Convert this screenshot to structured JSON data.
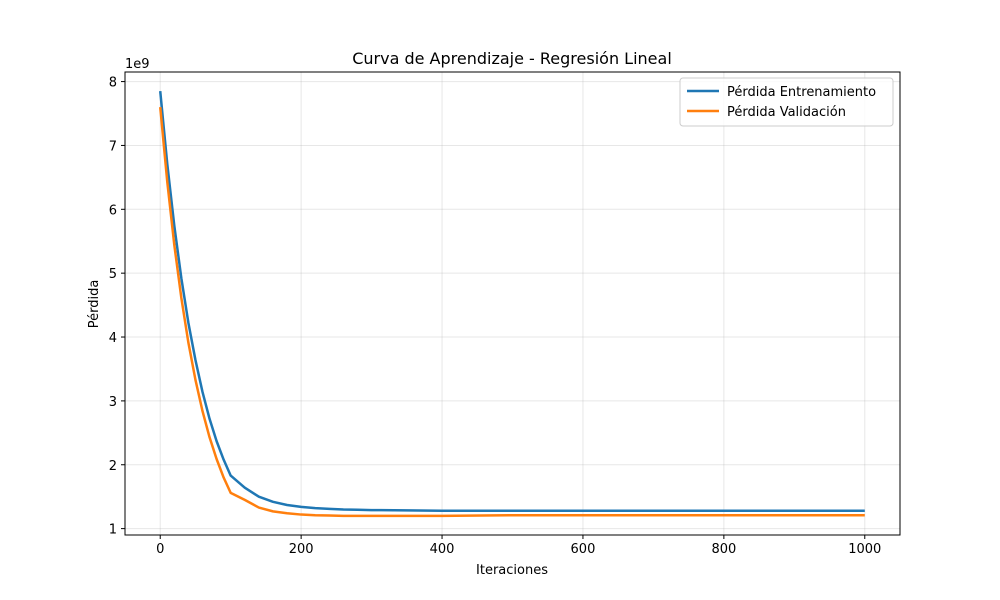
{
  "chart_data": {
    "type": "line",
    "title": "Curva de Aprendizaje - Regresión Lineal",
    "xlabel": "Iteraciones",
    "ylabel": "Pérdida",
    "y_offset_label": "1e9",
    "xlim": [
      -50,
      1050
    ],
    "ylim": [
      0.9,
      8.15
    ],
    "x_ticks": [
      0,
      200,
      400,
      600,
      800,
      1000
    ],
    "x_tick_labels": [
      "0",
      "200",
      "400",
      "600",
      "800",
      "1000"
    ],
    "y_ticks": [
      1,
      2,
      3,
      4,
      5,
      6,
      7,
      8
    ],
    "y_tick_labels": [
      "1",
      "2",
      "3",
      "4",
      "5",
      "6",
      "7",
      "8"
    ],
    "grid": true,
    "legend_position": "top-right",
    "x": [
      0,
      10,
      20,
      30,
      40,
      50,
      60,
      70,
      80,
      90,
      100,
      120,
      140,
      160,
      180,
      200,
      220,
      240,
      260,
      280,
      300,
      350,
      400,
      500,
      600,
      700,
      800,
      900,
      1000
    ],
    "series": [
      {
        "name": "Pérdida Entrenamiento",
        "color": "#1f77b4",
        "values": [
          7.85,
          6.71,
          5.74,
          4.92,
          4.22,
          3.64,
          3.14,
          2.72,
          2.37,
          2.08,
          1.83,
          1.64,
          1.5,
          1.42,
          1.37,
          1.34,
          1.32,
          1.31,
          1.3,
          1.295,
          1.29,
          1.285,
          1.28,
          1.28,
          1.28,
          1.28,
          1.28,
          1.28,
          1.28
        ]
      },
      {
        "name": "Pérdida Validación",
        "color": "#ff7f0e",
        "values": [
          7.6,
          6.43,
          5.44,
          4.61,
          3.91,
          3.33,
          2.84,
          2.43,
          2.09,
          1.8,
          1.56,
          1.45,
          1.33,
          1.27,
          1.24,
          1.22,
          1.21,
          1.205,
          1.2,
          1.2,
          1.2,
          1.2,
          1.2,
          1.21,
          1.21,
          1.21,
          1.21,
          1.21,
          1.21
        ]
      }
    ]
  }
}
